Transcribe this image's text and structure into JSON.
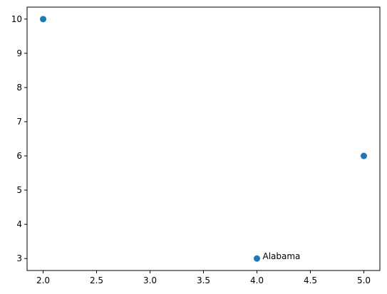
{
  "chart_data": {
    "type": "scatter",
    "title": "",
    "xlabel": "",
    "ylabel": "",
    "xlim": [
      1.85,
      5.15
    ],
    "ylim": [
      2.65,
      10.35
    ],
    "grid": false,
    "x_ticks": [
      2.0,
      2.5,
      3.0,
      3.5,
      4.0,
      4.5,
      5.0
    ],
    "x_tick_labels": [
      "2.0",
      "2.5",
      "3.0",
      "3.5",
      "4.0",
      "4.5",
      "5.0"
    ],
    "y_ticks": [
      3,
      4,
      5,
      6,
      7,
      8,
      9,
      10
    ],
    "y_tick_labels": [
      "3",
      "4",
      "5",
      "6",
      "7",
      "8",
      "9",
      "10"
    ],
    "x": [
      2,
      4,
      5
    ],
    "y": [
      10,
      3,
      6
    ],
    "marker_color": "#1f77b4",
    "annotations": [
      {
        "text": "Alabama",
        "x": 4,
        "y": 3
      }
    ]
  }
}
